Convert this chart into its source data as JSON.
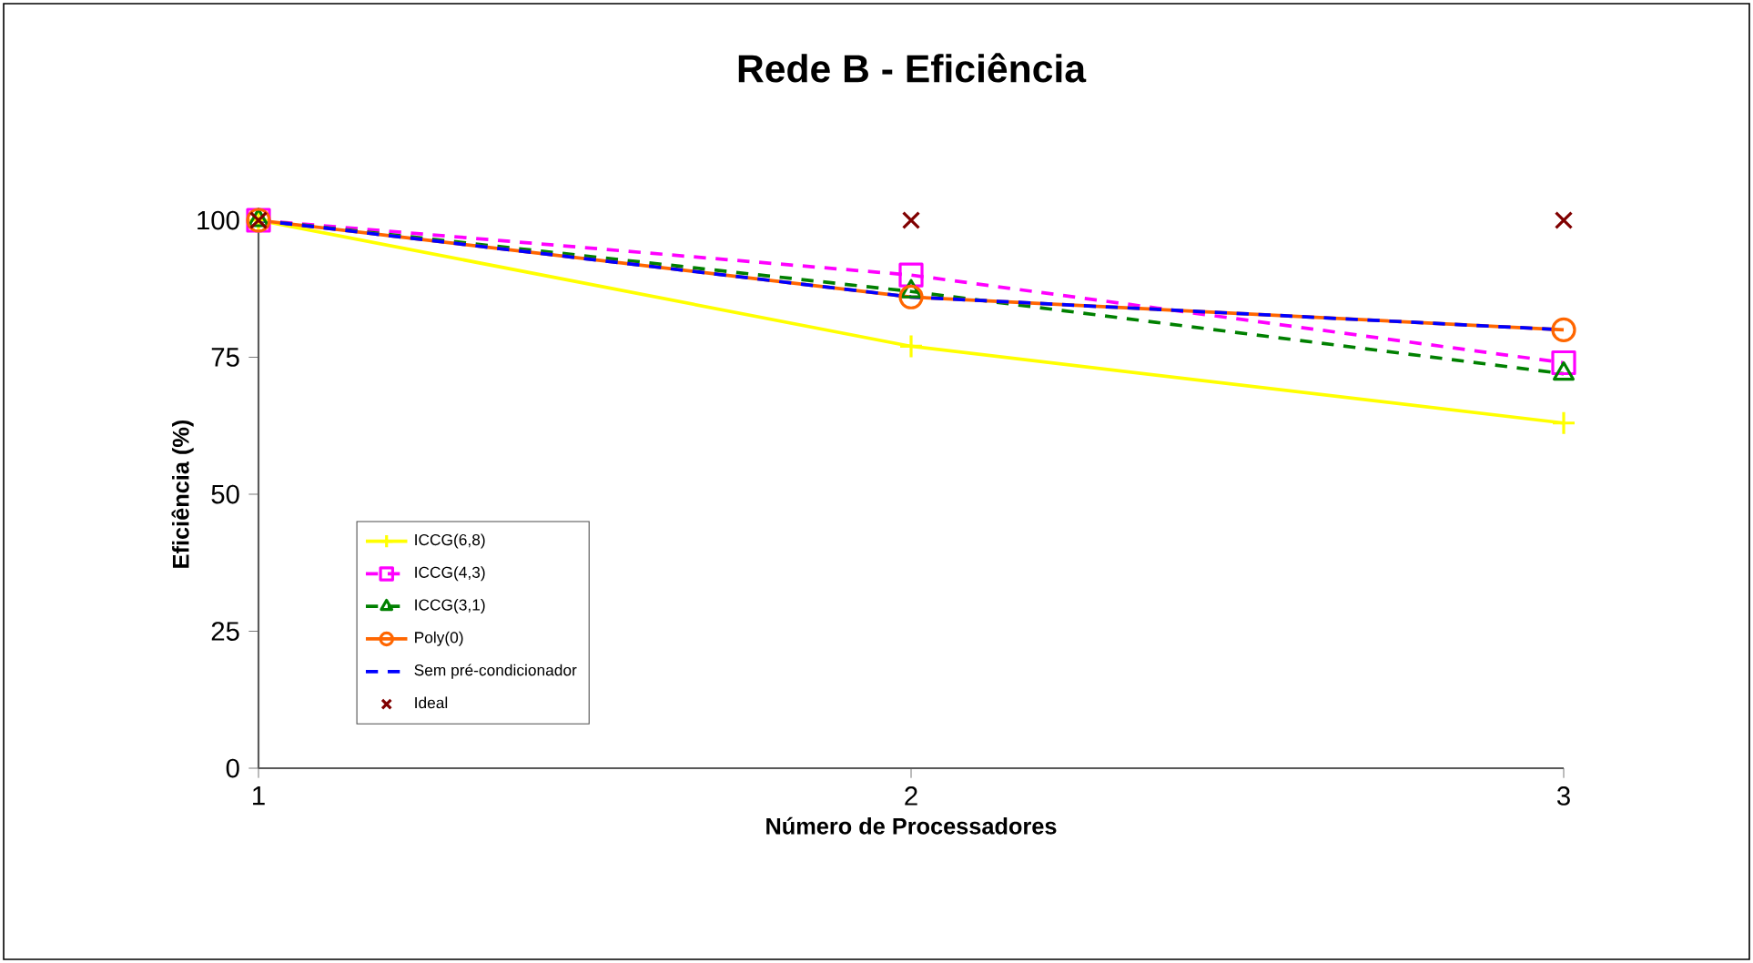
{
  "chart_data": {
    "type": "line",
    "title": "Rede B - Eficiência",
    "xlabel": "Número de Processadores",
    "ylabel": "Eficiência (%)",
    "x": [
      1,
      2,
      3
    ],
    "xlim": [
      1,
      3
    ],
    "xticks": [
      1,
      2,
      3
    ],
    "ylim": [
      0,
      100
    ],
    "yticks": [
      0,
      25,
      50,
      75,
      100
    ],
    "grid": false,
    "legend": "bottom left",
    "series": [
      {
        "name": "ICCG(6,8)",
        "color": "#ffff00",
        "marker": "plus",
        "line_style": "solid",
        "values": [
          100,
          77,
          63
        ]
      },
      {
        "name": "ICCG(4,3)",
        "color": "#ff00ff",
        "marker": "square",
        "line_style": "dashed",
        "values": [
          100,
          90,
          74
        ]
      },
      {
        "name": "ICCG(3,1)",
        "color": "#008000",
        "marker": "triangle",
        "line_style": "dashed",
        "values": [
          100,
          87,
          72
        ]
      },
      {
        "name": "Poly(0)",
        "color": "#ff6600",
        "marker": "circle",
        "line_style": "solid",
        "values": [
          100,
          86,
          80
        ]
      },
      {
        "name": "Sem pré-condicionador",
        "color": "#0000ff",
        "marker": "none",
        "line_style": "dashed",
        "values": [
          100,
          86,
          80
        ]
      },
      {
        "name": "Ideal",
        "type": "scatter",
        "color": "#800000",
        "marker": "cross",
        "values": [
          100,
          100,
          100
        ]
      }
    ]
  }
}
